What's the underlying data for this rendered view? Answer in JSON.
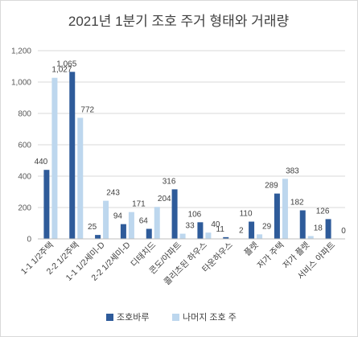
{
  "chart_data": {
    "type": "bar",
    "title": "2021년 1분기 조호 주거 형태와 거래량",
    "categories": [
      "1-1 1/2주택",
      "2-2 1/2주택",
      "1-1 1/2세미-D",
      "2-2 1/2세미-D",
      "디태치드",
      "콘도/아파트",
      "콜리츠된 하우스",
      "타운하우스",
      "플렛",
      "저가 주택",
      "저가 플렛",
      "서비스 아파트"
    ],
    "series": [
      {
        "name": "조호바루",
        "color": "#2e5b9a",
        "values": [
          440,
          1065,
          25,
          94,
          64,
          316,
          106,
          11,
          110,
          289,
          182,
          126
        ]
      },
      {
        "name": "나머지 조호 주",
        "color": "#bdd7ee",
        "values": [
          1027,
          772,
          243,
          171,
          204,
          33,
          40,
          2,
          29,
          383,
          18,
          0
        ]
      }
    ],
    "value_labels": [
      [
        "440",
        "1,065",
        "25",
        "94",
        "64",
        "316",
        "106",
        "11",
        "110",
        "289",
        "182",
        "126"
      ],
      [
        "1,027",
        "772",
        "243",
        "171",
        "204",
        "33",
        "40",
        "2",
        "29",
        "383",
        "18",
        "0"
      ]
    ],
    "ylim": [
      0,
      1200
    ],
    "yticks": [
      0,
      200,
      400,
      600,
      800,
      1000,
      1200
    ],
    "ytick_labels": [
      "0",
      "200",
      "400",
      "600",
      "800",
      "1,000",
      "1,200"
    ],
    "grid": true,
    "legend_position": "bottom"
  }
}
